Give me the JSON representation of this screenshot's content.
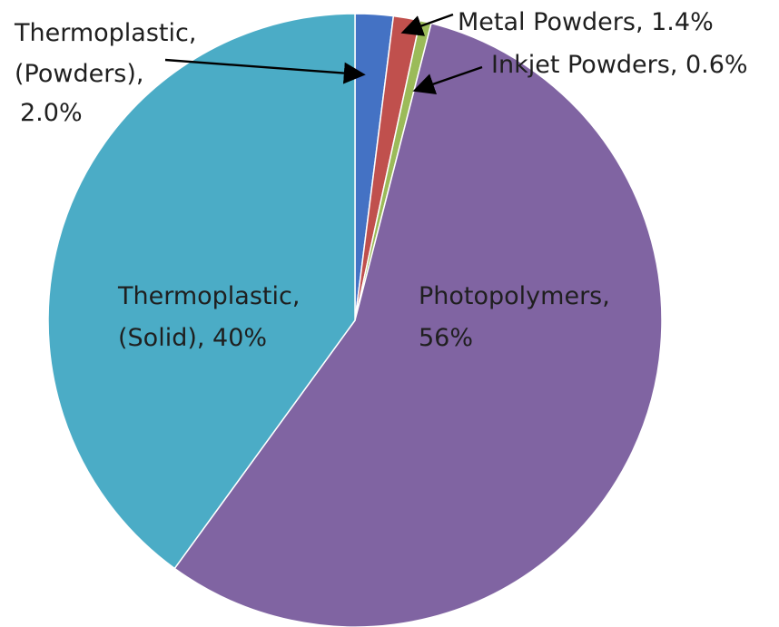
{
  "chart_data": {
    "type": "pie",
    "title": "",
    "slices": [
      {
        "name": "Thermoplastic, (Powders)",
        "value": 2.0,
        "label_lines": [
          "Thermoplastic,",
          "(Powders),",
          "2.0%"
        ],
        "color": "#4472C4"
      },
      {
        "name": "Metal Powders",
        "value": 1.4,
        "label_lines": [
          "Metal Powders, 1.4%"
        ],
        "color": "#C0504D"
      },
      {
        "name": "Inkjet Powders",
        "value": 0.6,
        "label_lines": [
          "Inkjet Powders, 0.6%"
        ],
        "color": "#9BBB59"
      },
      {
        "name": "Photopolymers",
        "value": 56,
        "label_lines": [
          "Photopolymers,",
          "56%"
        ],
        "color": "#8064A2"
      },
      {
        "name": "Thermoplastic, (Solid)",
        "value": 40,
        "label_lines": [
          "Thermoplastic,",
          "(Solid), 40%"
        ],
        "color": "#4BACC6"
      }
    ],
    "legend": "none",
    "start_angle": "12 o'clock",
    "direction": "clockwise"
  },
  "labels": {
    "thermo_powders": {
      "line1": "Thermoplastic,",
      "line2": "(Powders),",
      "line3": "2.0%"
    },
    "metal_powders": {
      "line1": "Metal Powders, 1.4%"
    },
    "inkjet_powders": {
      "line1": "Inkjet Powders, 0.6%"
    },
    "photopolymers": {
      "line1": "Photopolymers,",
      "line2": "56%"
    },
    "thermo_solid": {
      "line1": "Thermoplastic,",
      "line2": "(Solid), 40%"
    }
  }
}
